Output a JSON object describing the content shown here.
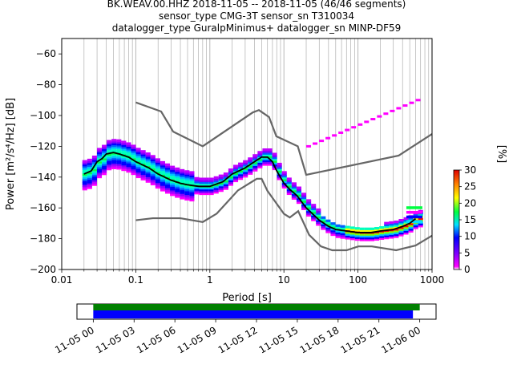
{
  "title": {
    "line1": "BK.WEAV.00.HHZ   2018-11-05 -- 2018-11-05  (46/46 segments)",
    "line2": "sensor_type CMG-3T sensor_sn T310034",
    "line3": "datalogger_type GuralpMinimus+ datalogger_sn MINP-DF59"
  },
  "chart_data": [
    {
      "type": "heatmap",
      "subtype": "probabilistic power spectral density",
      "xlabel": "Period [s]",
      "ylabel": "Power [m²/s⁴/Hz] [dB]",
      "x_scale": "log",
      "xlim": [
        0.01,
        1000
      ],
      "ylim": [
        -200,
        -50
      ],
      "x_ticks": [
        0.01,
        0.1,
        1,
        10,
        100,
        1000
      ],
      "x_tick_labels": [
        "0.01",
        "0.1",
        "1",
        "10",
        "100",
        "1000"
      ],
      "y_ticks": [
        -200,
        -180,
        -160,
        -140,
        -120,
        -100,
        -80,
        -60
      ],
      "y_tick_labels": [
        "−200",
        "−180",
        "−160",
        "−140",
        "−120",
        "−100",
        "−80",
        "−60"
      ],
      "grid": "vertical",
      "colorbar": {
        "label": "[%]",
        "range": [
          0,
          30
        ],
        "ticks": [
          0,
          5,
          10,
          15,
          20,
          25,
          30
        ],
        "colormap": "pqlx"
      },
      "mode_line": {
        "color": "#000000",
        "x": [
          0.02,
          0.025,
          0.03,
          0.035,
          0.04,
          0.05,
          0.06,
          0.08,
          0.1,
          0.15,
          0.2,
          0.3,
          0.4,
          0.5,
          0.7,
          1,
          1.5,
          2,
          3,
          4,
          5,
          6,
          7,
          8,
          10,
          12,
          15,
          20,
          30,
          40,
          50,
          70,
          100,
          150,
          200,
          300,
          400,
          500,
          600
        ],
        "y": [
          -138,
          -136,
          -130,
          -128,
          -125,
          -124,
          -125,
          -127,
          -130,
          -134,
          -138,
          -142,
          -144,
          -145,
          -146,
          -146,
          -143,
          -138,
          -134,
          -130,
          -127,
          -127,
          -130,
          -136,
          -144,
          -148,
          -152,
          -160,
          -168,
          -172,
          -174,
          -175,
          -176,
          -176,
          -175,
          -174,
          -172,
          -170,
          -167
        ]
      },
      "noise_models": [
        {
          "name": "NHNM",
          "color": "#666666",
          "x": [
            0.1,
            0.22,
            0.32,
            0.8,
            3.8,
            4.6,
            6.3,
            7.9,
            15.4,
            20,
            354.8,
            1000
          ],
          "y": [
            -91.5,
            -97.4,
            -110.5,
            -120,
            -98,
            -96.5,
            -101,
            -113.5,
            -120,
            -138.5,
            -126,
            -112
          ]
        },
        {
          "name": "NLNM",
          "color": "#666666",
          "x": [
            0.1,
            0.17,
            0.4,
            0.8,
            1.24,
            2.4,
            4.3,
            5,
            6,
            10,
            12,
            15.6,
            21.9,
            31.6,
            45,
            70,
            101,
            154,
            328,
            600,
            1000
          ],
          "y": [
            -168,
            -166.7,
            -166.7,
            -169.2,
            -163.7,
            -148.6,
            -141.1,
            -141.1,
            -149,
            -163.8,
            -166.2,
            -162.1,
            -177.5,
            -185,
            -187.5,
            -187.5,
            -185,
            -185,
            -187.5,
            -184.4,
            -178
          ]
        }
      ]
    },
    {
      "type": "timeline",
      "description": "data coverage",
      "x_tick_labels": [
        "11-05 00",
        "11-05 03",
        "11-05 06",
        "11-05 09",
        "11-05 12",
        "11-05 15",
        "11-05 18",
        "11-05 21",
        "11-06 00"
      ],
      "x_range_hours": [
        -1.2,
        25.2
      ],
      "bars": [
        {
          "color": "#008000",
          "start_hours": 0,
          "end_hours": 24.0
        },
        {
          "color": "#0000ff",
          "start_hours": 0,
          "end_hours": 23.5
        }
      ]
    }
  ]
}
